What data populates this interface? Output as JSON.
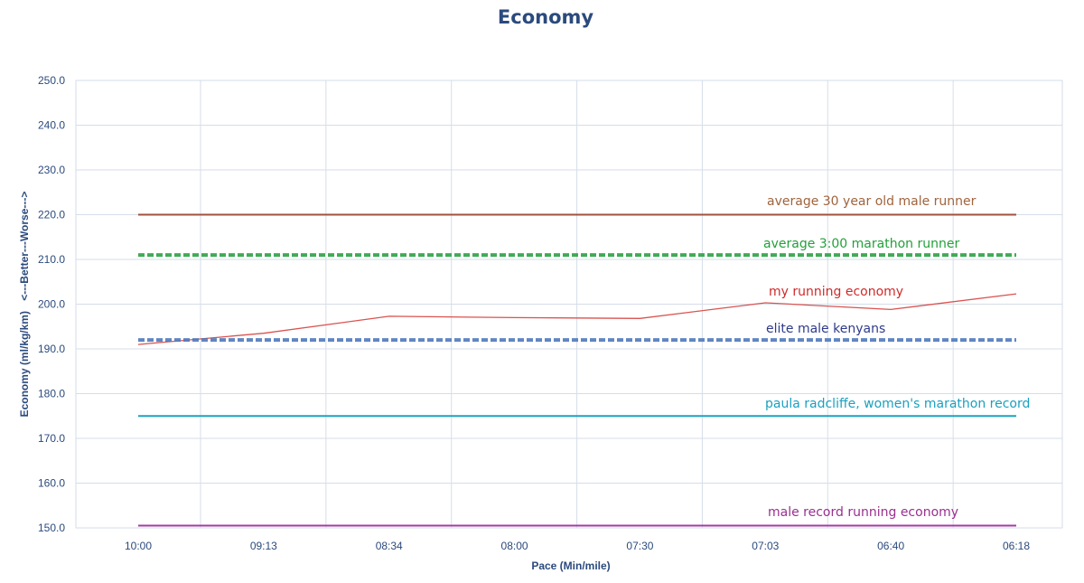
{
  "chart_data": {
    "type": "line",
    "title": "Economy",
    "xlabel": "Pace (Min/mile)",
    "ylabel": "Economy (ml/kg/km)",
    "ylabel_note": "<---Better---Worse--->",
    "categories": [
      "10:00",
      "09:13",
      "08:34",
      "08:00",
      "07:30",
      "07:03",
      "06:40",
      "06:18"
    ],
    "ylim": [
      150,
      250
    ],
    "yticks": [
      "150.0",
      "160.0",
      "170.0",
      "180.0",
      "190.0",
      "200.0",
      "210.0",
      "220.0",
      "230.0",
      "240.0",
      "250.0"
    ],
    "grid": true,
    "series": [
      {
        "name": "average 30 year old male runner",
        "values": [
          220,
          220,
          220,
          220,
          220,
          220,
          220,
          220
        ],
        "color": "#a0523d",
        "style": "solid"
      },
      {
        "name": "average 3:00 marathon runner",
        "values": [
          211,
          211,
          211,
          211,
          211,
          211,
          211,
          211
        ],
        "color": "#2ca244",
        "style": "dashed"
      },
      {
        "name": "my running economy",
        "values": [
          191,
          193.5,
          197.3,
          197,
          196.8,
          200.3,
          198.8,
          202.3
        ],
        "color": "#d9534f",
        "style": "solid"
      },
      {
        "name": "elite male kenyans",
        "values": [
          192,
          192,
          192,
          192,
          192,
          192,
          192,
          192
        ],
        "color": "#4f79bd",
        "style": "dashed"
      },
      {
        "name": "paula radcliffe, women's marathon record",
        "values": [
          175,
          175,
          175,
          175,
          175,
          175,
          175,
          175
        ],
        "color": "#1ca3c0",
        "style": "solid"
      },
      {
        "name": "male record running economy",
        "values": [
          150.5,
          150.5,
          150.5,
          150.5,
          150.5,
          150.5,
          150.5,
          150.5
        ],
        "color": "#a23ea3",
        "style": "solid"
      }
    ],
    "annotation_colors": {
      "average 30 year old male runner": "#a0643c",
      "average 3:00 marathon runner": "#22a03a",
      "my running economy": "#d02a2a",
      "elite male kenyans": "#2e3b8c",
      "paula radcliffe, women's marathon record": "#1aa0bf",
      "male record running economy": "#9a2f8f"
    }
  }
}
